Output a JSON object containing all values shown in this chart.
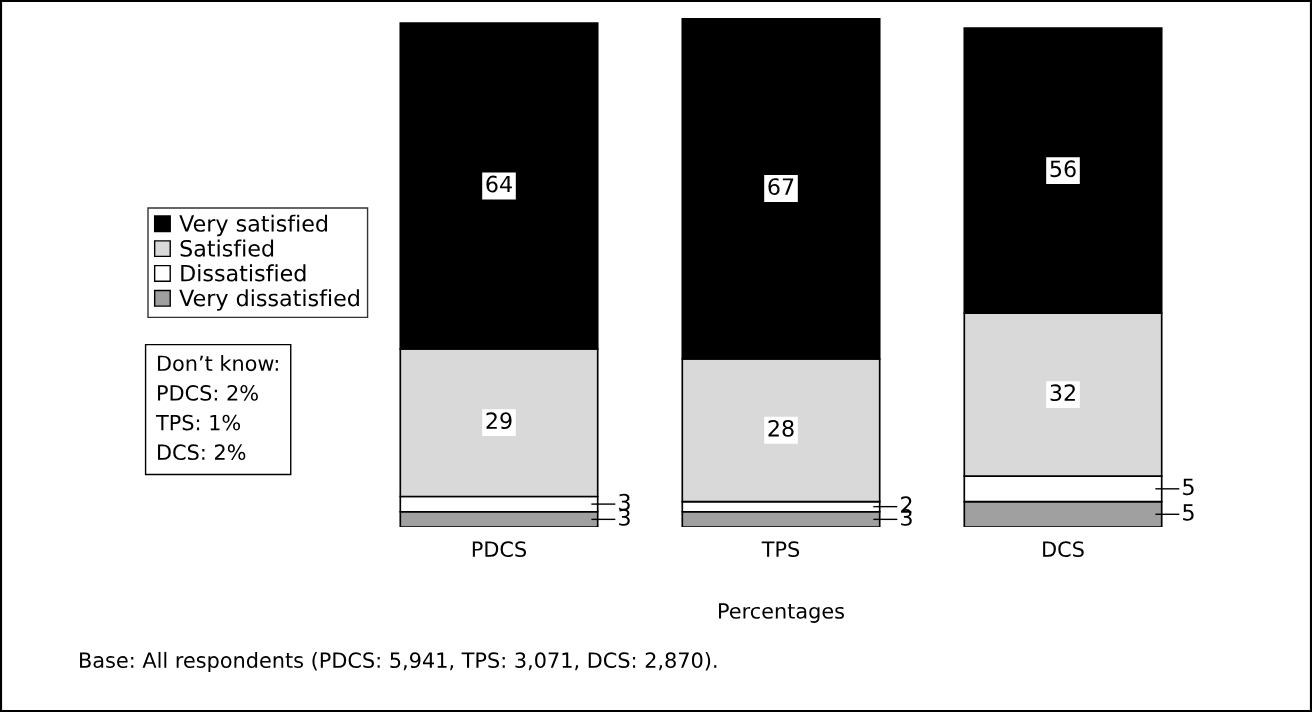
{
  "chart_data": {
    "type": "bar",
    "stacked": true,
    "categories": [
      "PDCS",
      "TPS",
      "DCS"
    ],
    "series": [
      {
        "name": "Very dissatisfied",
        "color": "#a0a0a0",
        "values": [
          3,
          3,
          5
        ]
      },
      {
        "name": "Dissatisfied",
        "color": "#ffffff",
        "values": [
          3,
          2,
          5
        ]
      },
      {
        "name": "Satisfied",
        "color": "#d9d9d9",
        "values": [
          29,
          28,
          32
        ]
      },
      {
        "name": "Very satisfied",
        "color": "#000000",
        "values": [
          64,
          67,
          56
        ]
      }
    ],
    "xlabel": "Percentages",
    "data_labels": true,
    "legend": "left",
    "tick_labels": "x",
    "grid": false,
    "annotations": [
      "Don’t know:\nPDCS: 2%\nTPS: 1%\nDCS: 2%",
      "Base: All respondents (PDCS: 5,941, TPS: 3,071, DCS: 2,870)."
    ]
  }
}
